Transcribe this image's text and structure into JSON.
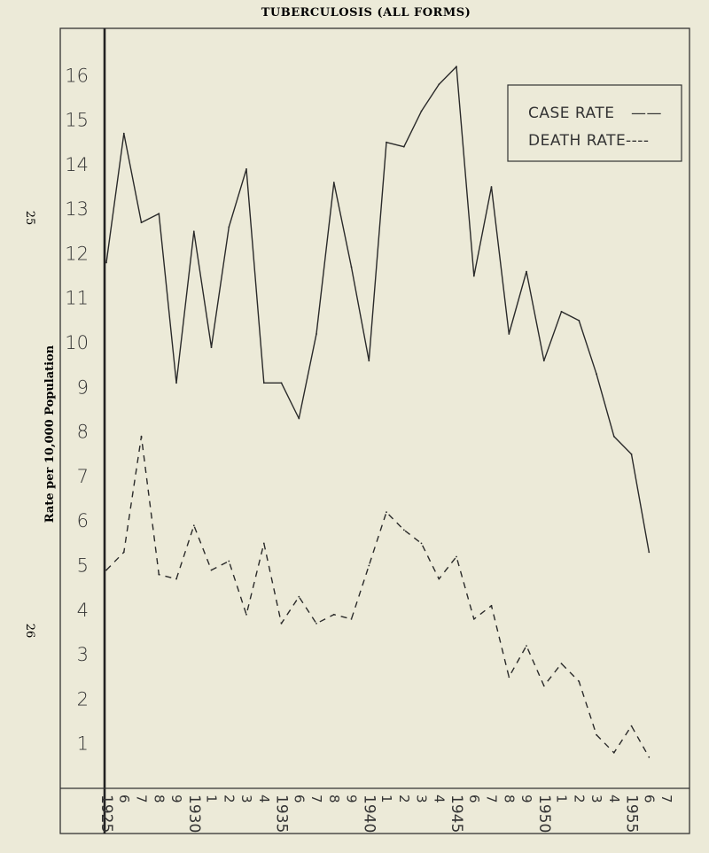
{
  "page": {
    "side_number_top": "25",
    "side_number_bottom": "26"
  },
  "chart_data": {
    "type": "line",
    "title": "TUBERCULOSIS (ALL FORMS)",
    "xlabel": "",
    "ylabel": "Rate per 10,000 Population",
    "x": [
      1925,
      1926,
      1927,
      1928,
      1929,
      1930,
      1931,
      1932,
      1933,
      1934,
      1935,
      1936,
      1937,
      1938,
      1939,
      1940,
      1941,
      1942,
      1943,
      1944,
      1945,
      1946,
      1947,
      1948,
      1949,
      1950,
      1951,
      1952,
      1953,
      1954,
      1955,
      1956,
      1957
    ],
    "x_tick_labels": [
      "1925",
      "6",
      "7",
      "8",
      "9",
      "1930",
      "1",
      "2",
      "3",
      "4",
      "1935",
      "6",
      "7",
      "8",
      "9",
      "1940",
      "1",
      "2",
      "3",
      "4",
      "1945",
      "6",
      "7",
      "8",
      "9",
      "1950",
      "1",
      "2",
      "3",
      "4",
      "1955",
      "6",
      "7"
    ],
    "y_ticks": [
      1,
      2,
      3,
      4,
      5,
      6,
      7,
      8,
      9,
      10,
      11,
      12,
      13,
      14,
      15,
      16
    ],
    "ylim": [
      0,
      16.9
    ],
    "legend": {
      "position": "top-right"
    },
    "series": [
      {
        "name": "CASE RATE",
        "legend_marker": "——",
        "style": "solid",
        "x": [
          1925,
          1926,
          1927,
          1928,
          1929,
          1930,
          1931,
          1932,
          1933,
          1934,
          1935,
          1936,
          1937,
          1938,
          1939,
          1940,
          1941,
          1942,
          1943,
          1944,
          1945,
          1946,
          1947,
          1948,
          1949,
          1950,
          1951,
          1952,
          1953,
          1954,
          1955,
          1956
        ],
        "values": [
          11.8,
          14.7,
          12.7,
          12.9,
          9.1,
          12.5,
          9.9,
          12.6,
          13.9,
          9.1,
          9.1,
          8.3,
          10.2,
          13.6,
          11.7,
          9.6,
          14.5,
          14.4,
          15.2,
          15.8,
          16.2,
          11.5,
          13.5,
          10.2,
          11.6,
          9.6,
          10.7,
          10.5,
          9.3,
          7.9,
          7.5,
          5.3
        ]
      },
      {
        "name": "DEATH RATE",
        "legend_marker": "----",
        "style": "dashed",
        "x": [
          1925,
          1926,
          1927,
          1928,
          1929,
          1930,
          1931,
          1932,
          1933,
          1934,
          1935,
          1936,
          1937,
          1938,
          1939,
          1940,
          1941,
          1942,
          1943,
          1944,
          1945,
          1946,
          1947,
          1948,
          1949,
          1950,
          1951,
          1952,
          1953,
          1954,
          1955,
          1956
        ],
        "values": [
          4.9,
          5.3,
          7.9,
          4.8,
          4.7,
          5.9,
          4.9,
          5.1,
          3.9,
          5.5,
          3.7,
          4.3,
          3.7,
          3.9,
          3.8,
          5.0,
          6.2,
          5.8,
          5.5,
          4.7,
          5.2,
          3.8,
          4.1,
          2.5,
          3.2,
          2.3,
          2.8,
          2.4,
          1.2,
          0.8,
          1.4,
          0.7
        ]
      }
    ]
  }
}
